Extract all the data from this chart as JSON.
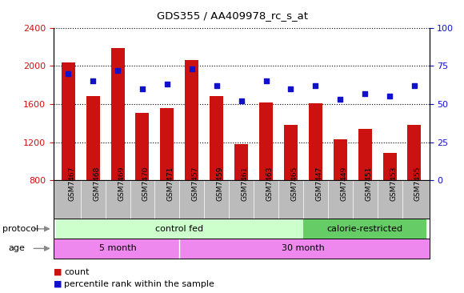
{
  "title": "GDS355 / AA409978_rc_s_at",
  "samples": [
    "GSM7467",
    "GSM7468",
    "GSM7469",
    "GSM7470",
    "GSM7471",
    "GSM7457",
    "GSM7459",
    "GSM7461",
    "GSM7463",
    "GSM7465",
    "GSM7447",
    "GSM7449",
    "GSM7451",
    "GSM7453",
    "GSM7455"
  ],
  "counts": [
    2040,
    1680,
    2190,
    1510,
    1560,
    2060,
    1680,
    1175,
    1620,
    1380,
    1610,
    1230,
    1340,
    1090,
    1380
  ],
  "percentiles": [
    70,
    65,
    72,
    60,
    63,
    73,
    62,
    52,
    65,
    60,
    62,
    53,
    57,
    55,
    62
  ],
  "bar_color": "#cc1111",
  "dot_color": "#1111cc",
  "ylim_left": [
    800,
    2400
  ],
  "ylim_right": [
    0,
    100
  ],
  "yticks_left": [
    800,
    1200,
    1600,
    2000,
    2400
  ],
  "yticks_right": [
    0,
    25,
    50,
    75,
    100
  ],
  "protocol_groups": {
    "control fed": [
      0,
      9
    ],
    "calorie-restricted": [
      10,
      14
    ]
  },
  "protocol_colors": {
    "control fed": "#ccffcc",
    "calorie-restricted": "#66cc66"
  },
  "age_groups": {
    "5 month": [
      0,
      4
    ],
    "30 month": [
      5,
      14
    ]
  },
  "age_color": "#ee88ee",
  "label_bg_color": "#bbbbbb",
  "background_color": "#ffffff",
  "grid_color": "#000000",
  "legend_count_label": "count",
  "legend_pct_label": "percentile rank within the sample"
}
